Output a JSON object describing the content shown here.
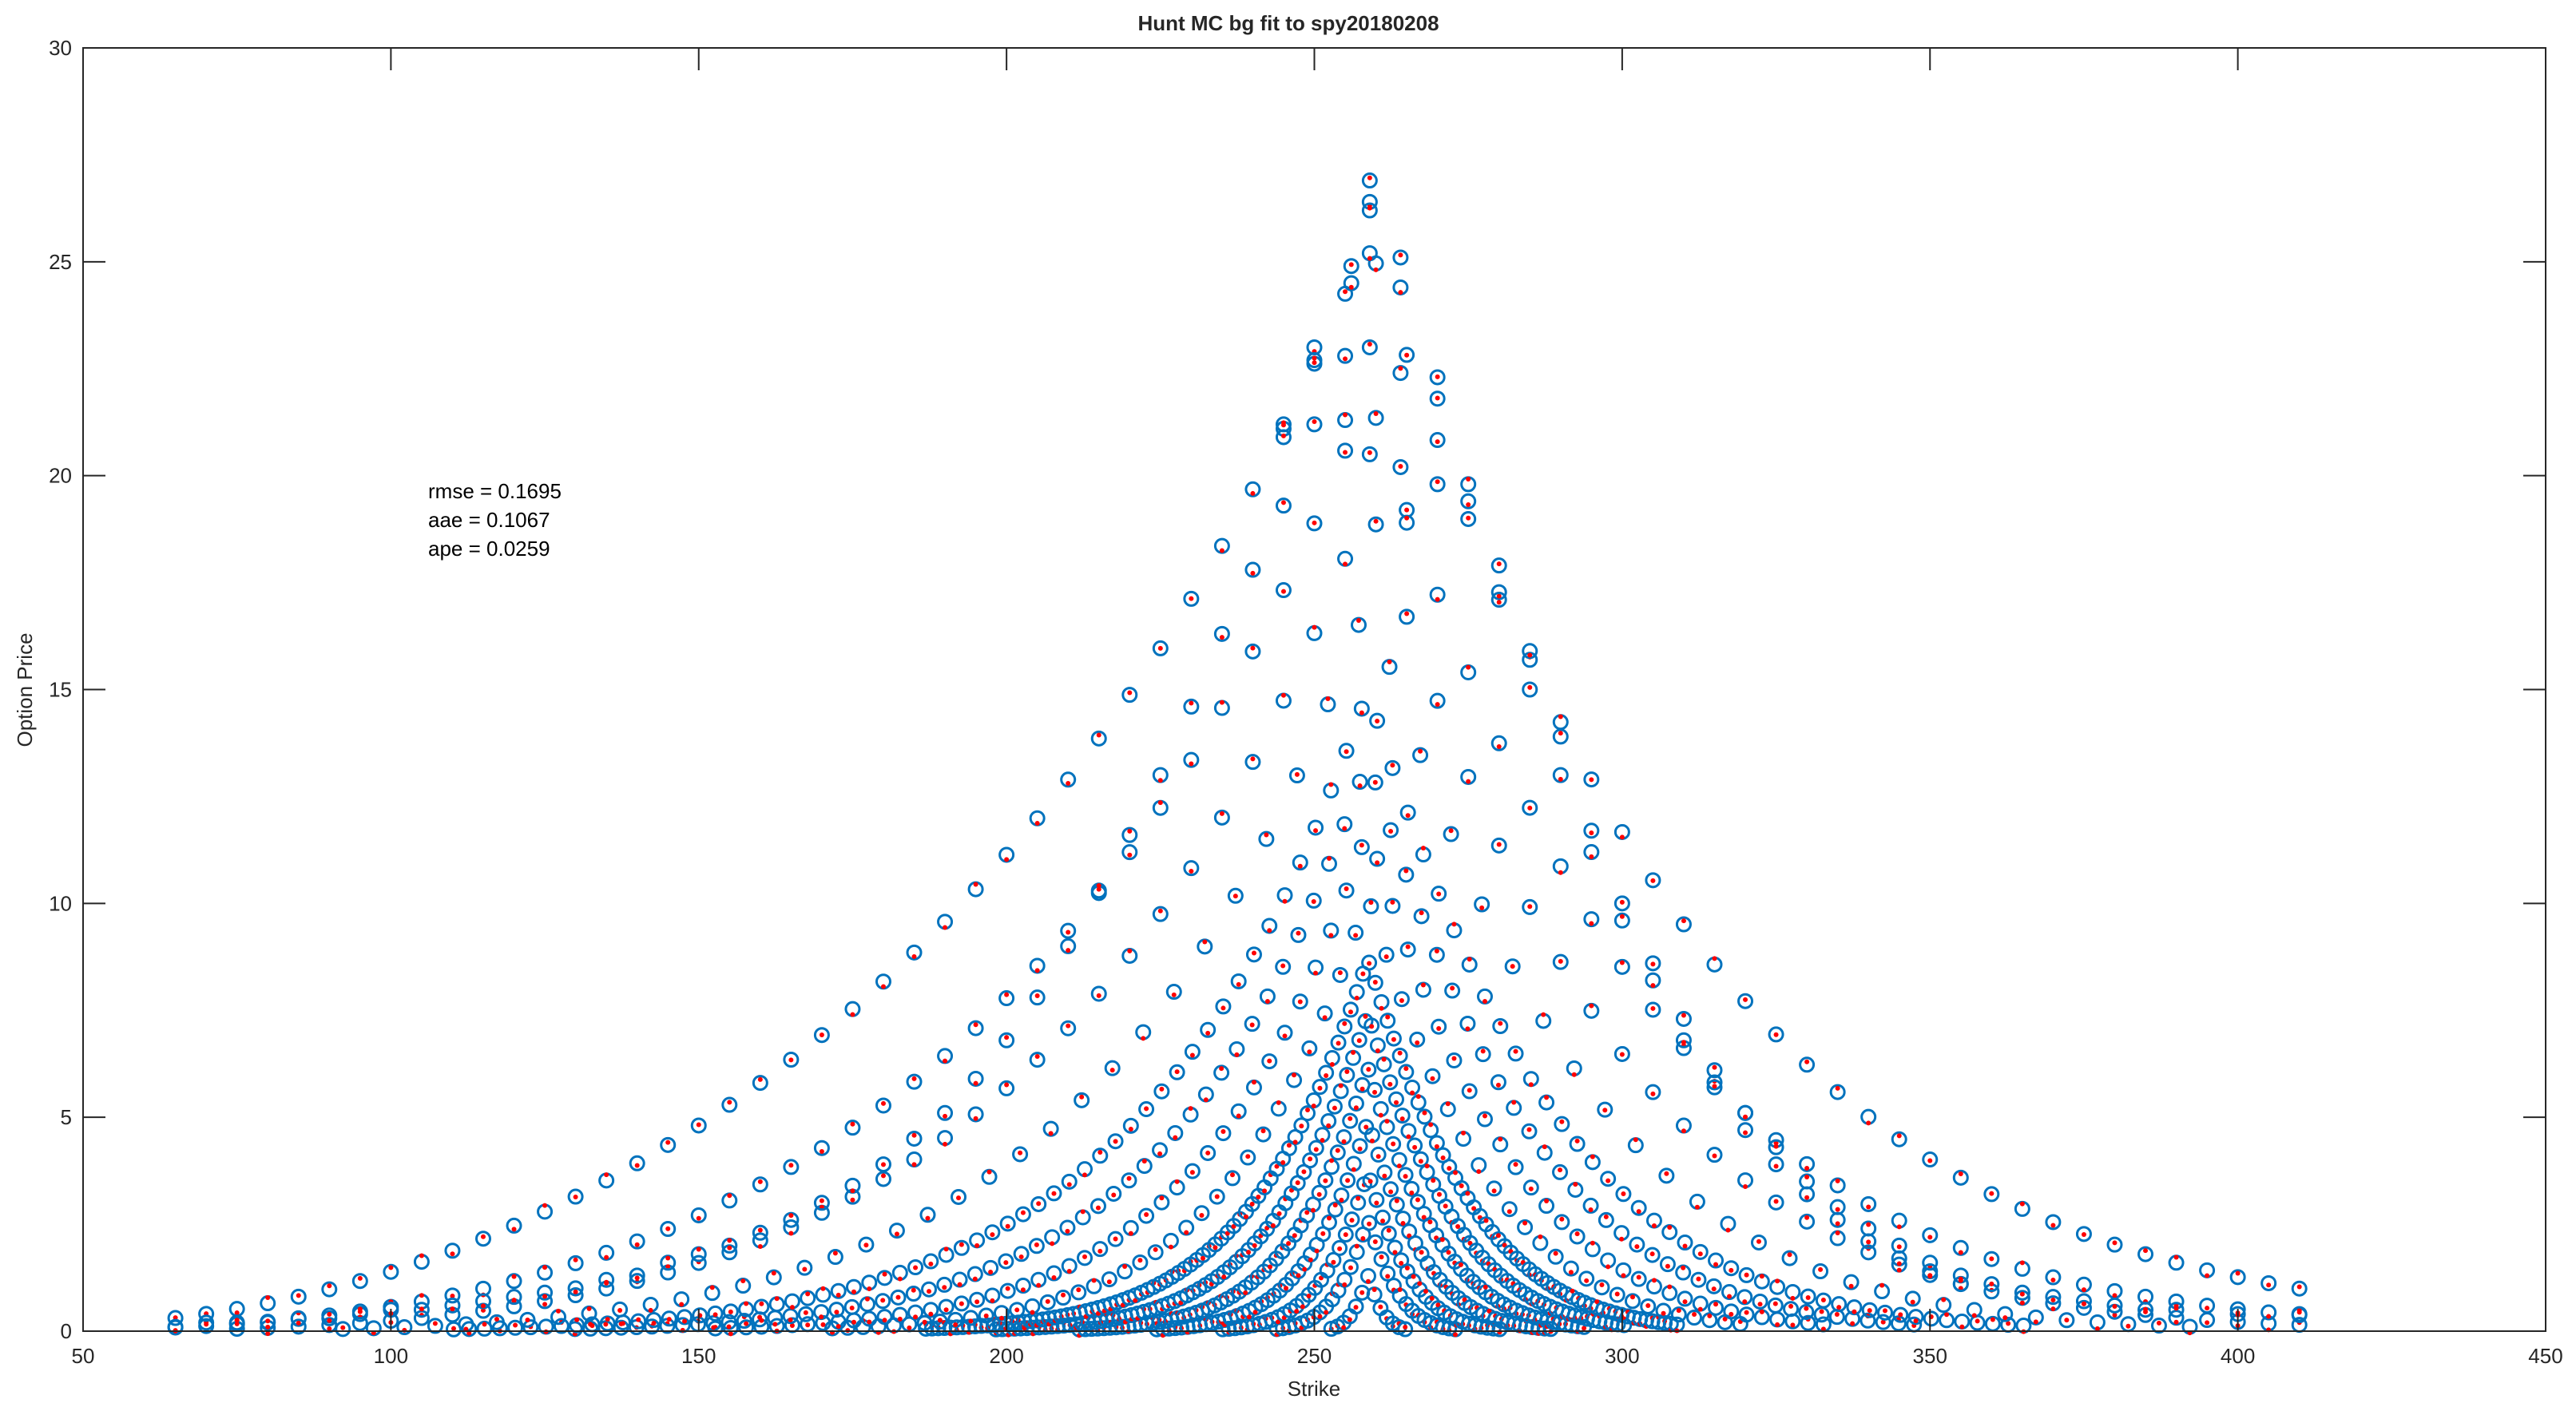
{
  "chart_data": {
    "type": "scatter",
    "title": "Hunt MC bg fit to spy20180208",
    "xlabel": "Strike",
    "ylabel": "Option Price",
    "xlim": [
      50,
      450
    ],
    "ylim": [
      0,
      30
    ],
    "xticks": [
      50,
      100,
      150,
      200,
      250,
      300,
      350,
      400,
      450
    ],
    "yticks": [
      0,
      5,
      10,
      15,
      20,
      25,
      30
    ],
    "grid": false,
    "stats": [
      "rmse = 0.1695",
      "aae = 0.1067",
      "ape = 0.0259"
    ],
    "marker_colors": {
      "observed": "#0072BD",
      "fitted": "#FF0000"
    },
    "peak_points": [
      [
        259,
        26.9
      ],
      [
        259,
        26.4
      ],
      [
        259,
        26.2
      ],
      [
        259,
        25.2
      ],
      [
        259,
        23.0
      ],
      [
        264,
        25.1
      ],
      [
        264,
        24.4
      ],
      [
        256,
        24.9
      ],
      [
        256,
        24.5
      ],
      [
        255,
        22.8
      ],
      [
        250,
        23.0
      ],
      [
        250,
        22.7
      ],
      [
        255,
        21.3
      ],
      [
        245,
        21.2
      ],
      [
        245,
        20.9
      ],
      [
        250,
        21.2
      ],
      [
        259,
        20.5
      ],
      [
        264,
        20.2
      ],
      [
        264,
        22.4
      ],
      [
        270,
        22.3
      ],
      [
        270,
        21.8
      ],
      [
        265,
        18.9
      ],
      [
        270,
        19.8
      ],
      [
        275,
        19.8
      ],
      [
        275,
        19.4
      ],
      [
        280,
        17.9
      ],
      [
        280,
        17.1
      ],
      [
        285,
        15.9
      ],
      [
        285,
        15.0
      ],
      [
        290,
        13.9
      ],
      [
        290,
        13.0
      ],
      [
        295,
        11.7
      ],
      [
        295,
        11.2
      ],
      [
        300,
        10.0
      ],
      [
        300,
        9.6
      ],
      [
        305,
        8.6
      ],
      [
        305,
        8.2
      ],
      [
        310,
        7.3
      ],
      [
        310,
        6.8
      ],
      [
        315,
        6.1
      ],
      [
        315,
        5.7
      ],
      [
        320,
        5.1
      ],
      [
        320,
        4.7
      ],
      [
        325,
        4.3
      ],
      [
        325,
        3.9
      ],
      [
        330,
        3.5
      ],
      [
        330,
        3.2
      ],
      [
        335,
        2.9
      ],
      [
        335,
        2.6
      ],
      [
        340,
        2.4
      ],
      [
        340,
        2.1
      ],
      [
        345,
        2.0
      ],
      [
        345,
        1.7
      ],
      [
        350,
        1.6
      ],
      [
        350,
        1.4
      ],
      [
        355,
        1.3
      ],
      [
        355,
        1.1
      ],
      [
        360,
        1.1
      ],
      [
        365,
        0.9
      ],
      [
        370,
        0.8
      ],
      [
        375,
        0.7
      ],
      [
        380,
        0.6
      ],
      [
        385,
        0.5
      ],
      [
        390,
        0.5
      ],
      [
        400,
        0.4
      ],
      [
        410,
        0.4
      ],
      [
        65,
        0.1
      ],
      [
        70,
        0.2
      ],
      [
        75,
        0.2
      ],
      [
        80,
        0.2
      ],
      [
        85,
        0.3
      ],
      [
        90,
        0.3
      ],
      [
        95,
        0.4
      ],
      [
        100,
        0.5
      ],
      [
        105,
        0.5
      ],
      [
        110,
        0.6
      ],
      [
        115,
        0.7
      ],
      [
        120,
        0.8
      ],
      [
        125,
        0.9
      ],
      [
        130,
        1.0
      ],
      [
        135,
        1.2
      ],
      [
        140,
        1.3
      ],
      [
        145,
        1.6
      ],
      [
        150,
        1.8
      ],
      [
        155,
        2.0
      ],
      [
        160,
        2.3
      ],
      [
        165,
        2.6
      ],
      [
        170,
        3.0
      ],
      [
        175,
        3.4
      ],
      [
        180,
        3.9
      ],
      [
        185,
        4.5
      ],
      [
        190,
        5.1
      ],
      [
        195,
        5.9
      ],
      [
        200,
        6.8
      ],
      [
        205,
        7.8
      ],
      [
        210,
        9.0
      ],
      [
        215,
        10.3
      ],
      [
        220,
        11.6
      ],
      [
        225,
        13.0
      ],
      [
        230,
        14.6
      ],
      [
        235,
        16.3
      ],
      [
        240,
        17.8
      ],
      [
        245,
        19.3
      ]
    ]
  }
}
